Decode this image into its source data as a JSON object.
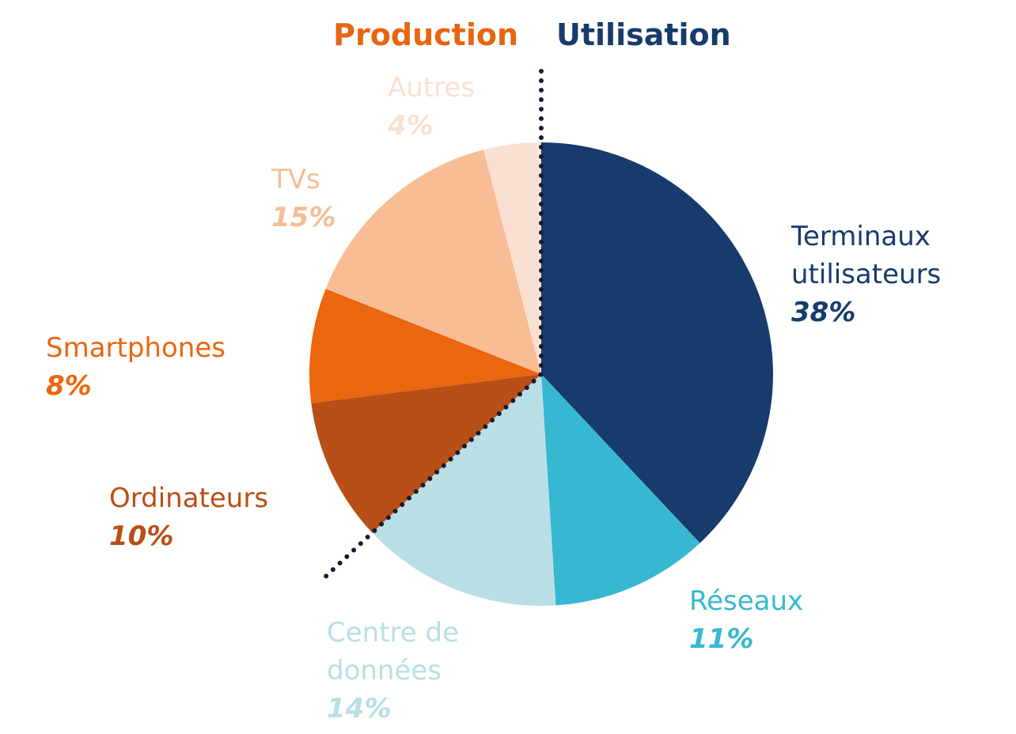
{
  "chart_data": {
    "type": "pie",
    "groups": [
      {
        "name": "Production",
        "color": "#E8650F"
      },
      {
        "name": "Utilisation",
        "color": "#173B6C"
      }
    ],
    "slices": [
      {
        "group": "Utilisation",
        "label_lines": [
          "Terminaux",
          "utilisateurs"
        ],
        "value": 38,
        "value_label": "38%",
        "color": "#173B6C",
        "label_color": "#173B6C"
      },
      {
        "group": "Utilisation",
        "label_lines": [
          "Réseaux"
        ],
        "value": 11,
        "value_label": "11%",
        "color": "#37B8D2",
        "label_color": "#37B8D2"
      },
      {
        "group": "Utilisation",
        "label_lines": [
          "Centre de",
          "données"
        ],
        "value": 14,
        "value_label": "14%",
        "color": "#B9DFE5",
        "label_color": "#B9DFE5"
      },
      {
        "group": "Production",
        "label_lines": [
          "Ordinateurs"
        ],
        "value": 10,
        "value_label": "10%",
        "color": "#B84F16",
        "label_color": "#B84F16"
      },
      {
        "group": "Production",
        "label_lines": [
          "Smartphones"
        ],
        "value": 8,
        "value_label": "8%",
        "color": "#EA660F",
        "label_color": "#EA660F"
      },
      {
        "group": "Production",
        "label_lines": [
          "TVs"
        ],
        "value": 15,
        "value_label": "15%",
        "color": "#F8BD95",
        "label_color": "#F8BD95"
      },
      {
        "group": "Production",
        "label_lines": [
          "Autres"
        ],
        "value": 4,
        "value_label": "4%",
        "color": "#FAE0D3",
        "label_color": "#FAE0D3"
      }
    ],
    "divider_color": "#1A1A33"
  }
}
